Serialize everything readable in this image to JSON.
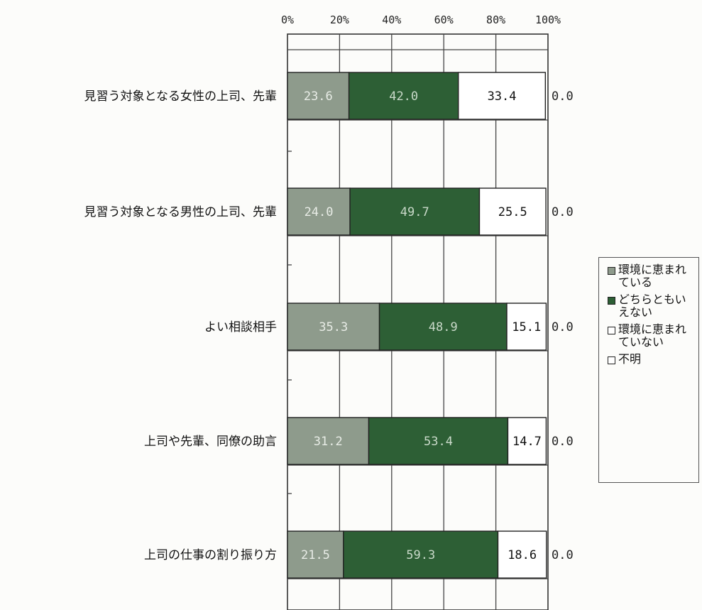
{
  "chart_data": {
    "type": "bar",
    "orientation": "horizontal",
    "stacked": true,
    "x_tick_labels": [
      "0%",
      "20%",
      "40%",
      "60%",
      "80%",
      "100%"
    ],
    "xlim": [
      0,
      100
    ],
    "grid": true,
    "legend_position": "right",
    "categories": [
      "見習う対象となる女性の上司、先輩",
      "見習う対象となる男性の上司、先輩",
      "よい相談相手",
      "上司や先輩、同僚の助言",
      "上司の仕事の割り振り方"
    ],
    "series": [
      {
        "name": "環境に恵まれている",
        "color": "#8e9b8c",
        "text_color": "#e8ece6",
        "values": [
          23.6,
          24.0,
          35.3,
          31.2,
          21.5
        ],
        "labels": [
          "23.6",
          "24.0",
          "35.3",
          "31.2",
          "21.5"
        ]
      },
      {
        "name": "どちらともいえない",
        "color": "#2d5f35",
        "text_color": "#c9d9c9",
        "values": [
          42.0,
          49.7,
          48.9,
          53.4,
          59.3
        ],
        "labels": [
          "42.0",
          "49.7",
          "48.9",
          "53.4",
          "59.3"
        ]
      },
      {
        "name": "環境に恵まれていない",
        "color": "#ffffff",
        "text_color": "#111111",
        "values": [
          33.4,
          25.5,
          15.1,
          14.7,
          18.6
        ],
        "labels": [
          "33.4",
          "25.5",
          "15.1",
          "14.7",
          "18.6"
        ]
      },
      {
        "name": "不明",
        "color": "#ffffff",
        "text_color": "#111111",
        "values": [
          0.0,
          0.0,
          0.0,
          0.0,
          0.0
        ],
        "labels": [
          "0.0",
          "0.0",
          "0.0",
          "0.0",
          "0.0"
        ]
      }
    ]
  }
}
